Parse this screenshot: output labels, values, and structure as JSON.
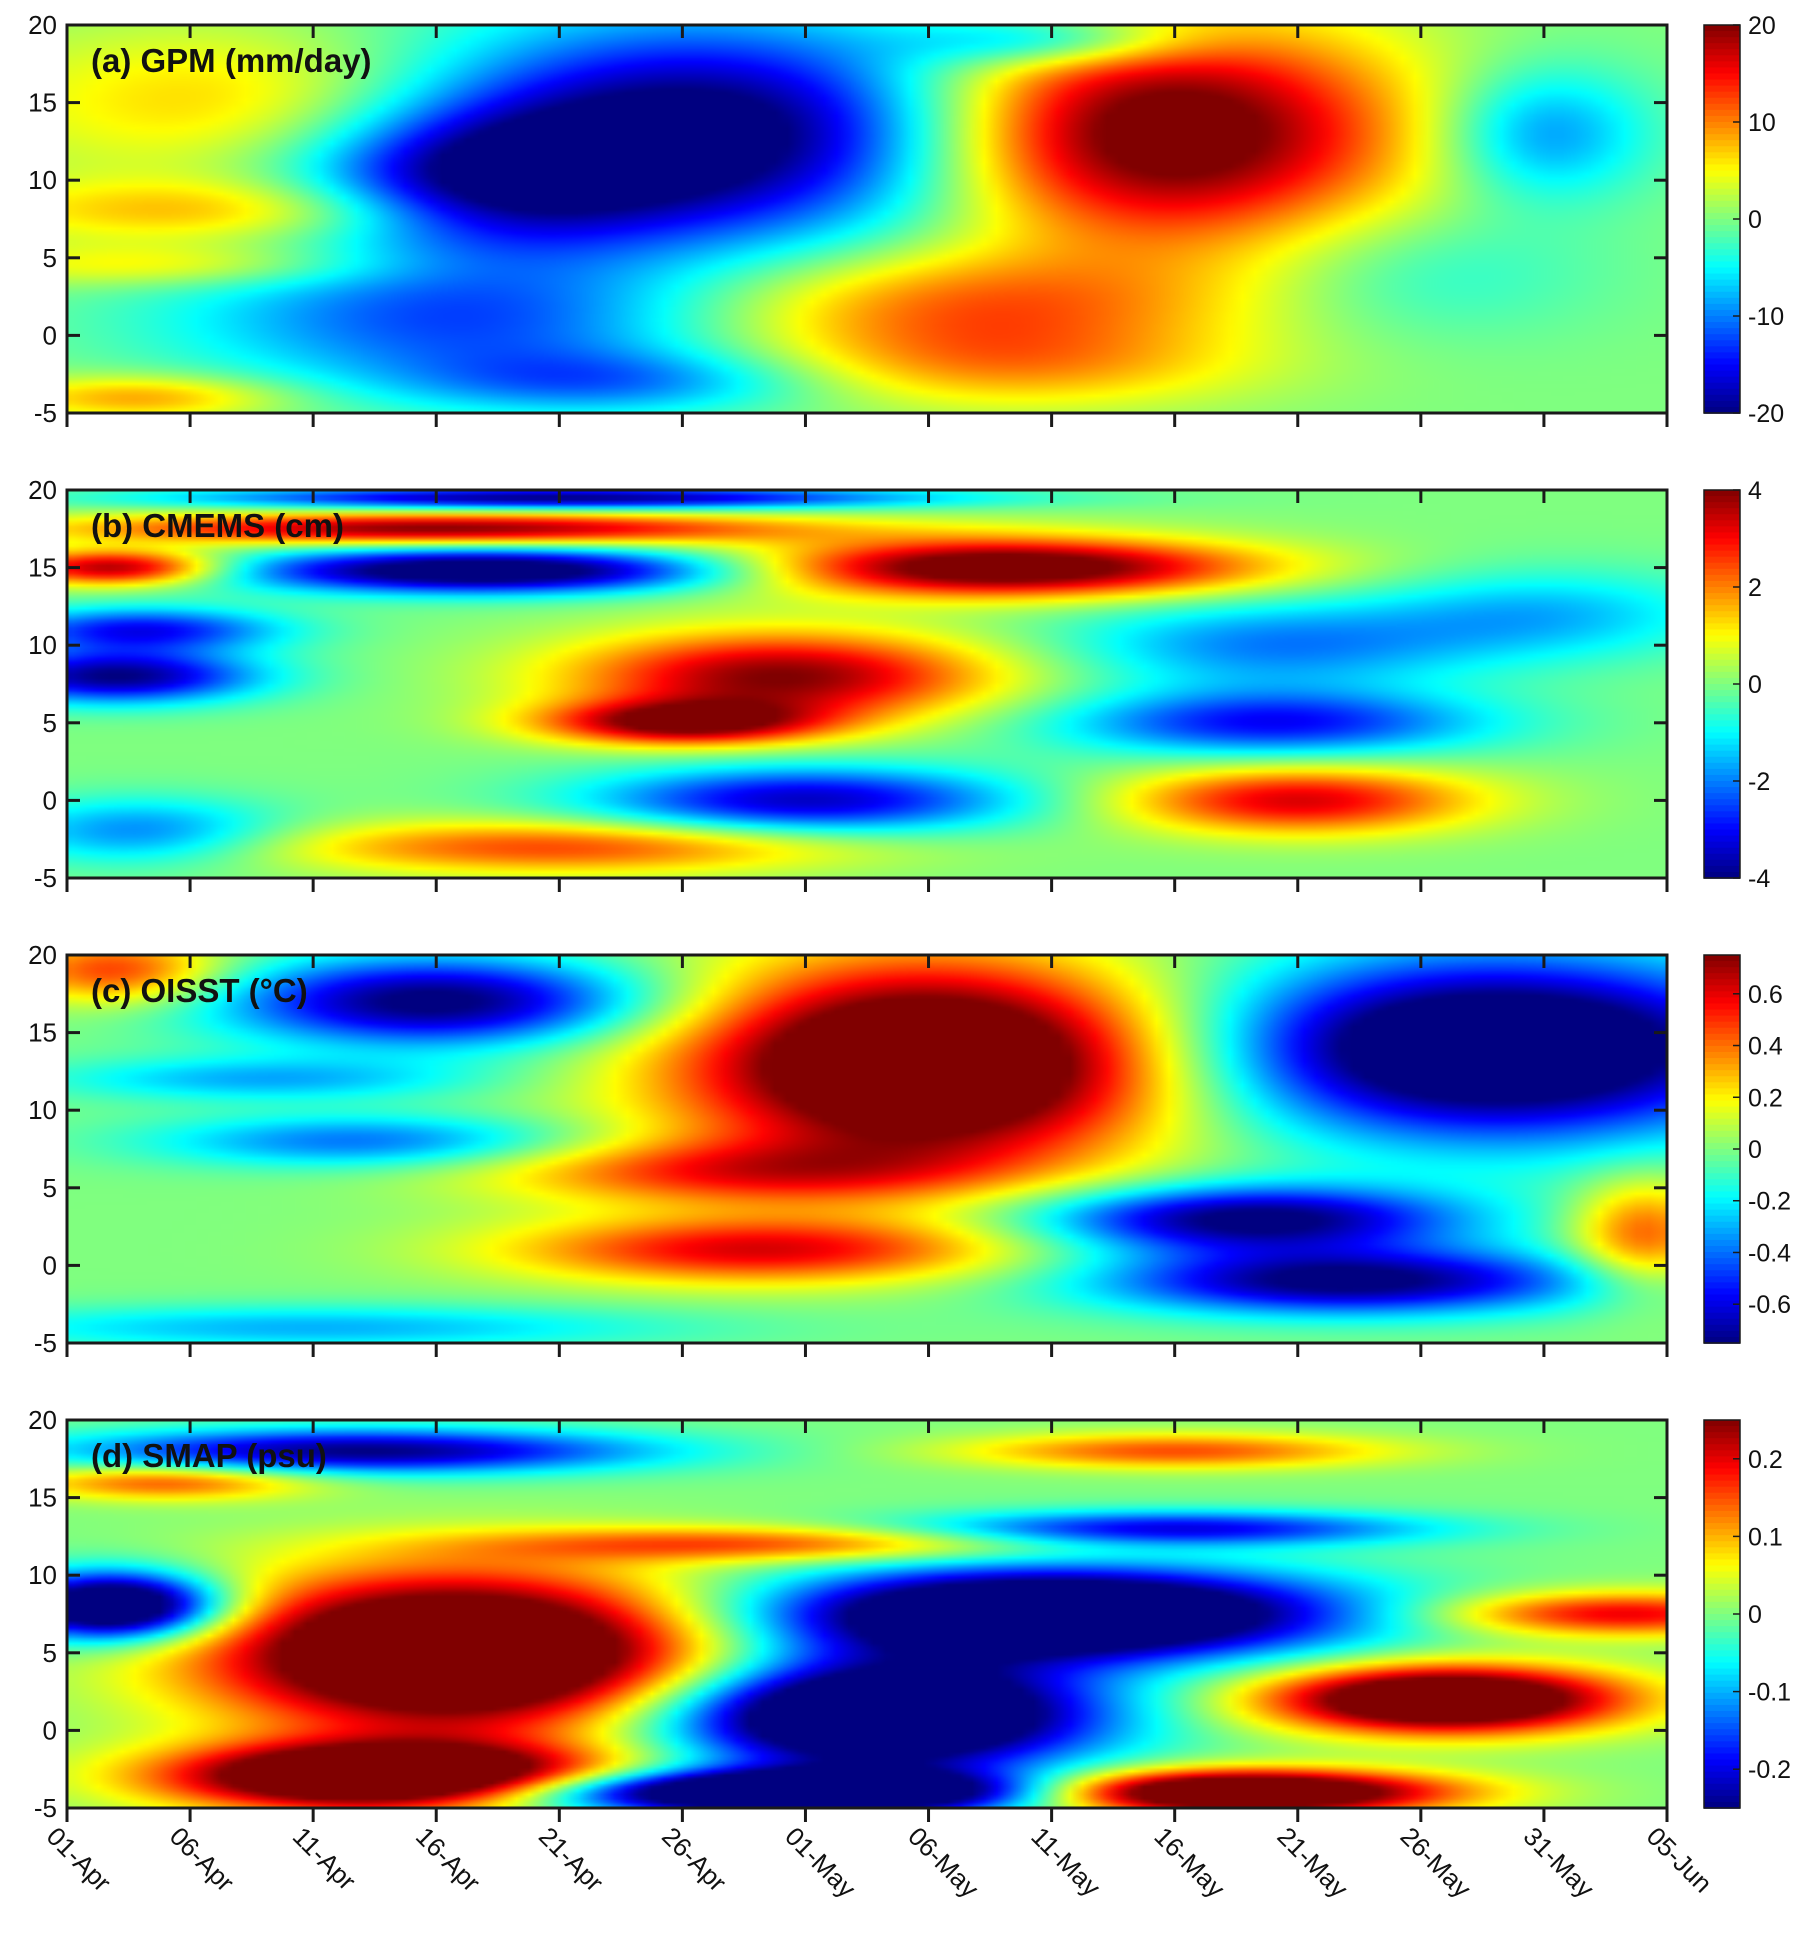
{
  "chart_data": [
    {
      "type": "heatmap",
      "title": "(a) GPM (mm/day)",
      "ylim": [
        -5,
        20
      ],
      "yticks": [
        -5,
        0,
        5,
        10,
        15,
        20
      ],
      "clim": [
        -20,
        20
      ],
      "colorbar_ticks": [
        -20,
        -10,
        0,
        10,
        20
      ],
      "features": [
        {
          "t": 26,
          "y": 13,
          "st": 9,
          "sy": 5,
          "v": -24
        },
        {
          "t": 17,
          "y": 10,
          "st": 5,
          "sy": 3,
          "v": -14
        },
        {
          "t": 44,
          "y": 13,
          "st": 7,
          "sy": 5,
          "v": 26
        },
        {
          "t": 7,
          "y": 15,
          "st": 7,
          "sy": 3.5,
          "v": 8
        },
        {
          "t": 6,
          "y": 8,
          "st": 7,
          "sy": 1.5,
          "v": 8
        },
        {
          "t": 4,
          "y": 4.5,
          "st": 6,
          "sy": 1,
          "v": 6
        },
        {
          "t": 16,
          "y": 1,
          "st": 8,
          "sy": 3,
          "v": -12
        },
        {
          "t": 36,
          "y": 2,
          "st": 8,
          "sy": 2.5,
          "v": 11
        },
        {
          "t": 38,
          "y": -2,
          "st": 7,
          "sy": 2,
          "v": 8
        },
        {
          "t": 22,
          "y": -3,
          "st": 6,
          "sy": 1.5,
          "v": -9
        },
        {
          "t": 3,
          "y": -4,
          "st": 4,
          "sy": 1,
          "v": 9
        },
        {
          "t": 60,
          "y": 13,
          "st": 3,
          "sy": 3,
          "v": -10
        },
        {
          "t": 55,
          "y": 4,
          "st": 5,
          "sy": 3,
          "v": -4
        },
        {
          "t": 40,
          "y": 19,
          "st": 4,
          "sy": 1.2,
          "v": -10
        }
      ]
    },
    {
      "type": "heatmap",
      "title": "(b) CMEMS (cm)",
      "ylim": [
        -5,
        20
      ],
      "yticks": [
        -5,
        0,
        5,
        10,
        15,
        20
      ],
      "clim": [
        -4,
        4
      ],
      "colorbar_ticks": [
        -4,
        -2,
        0,
        2,
        4
      ],
      "features": [
        {
          "t": 2,
          "y": 15,
          "st": 3,
          "sy": 0.8,
          "v": 4
        },
        {
          "t": 17,
          "y": 14.8,
          "st": 7,
          "sy": 1,
          "v": -5
        },
        {
          "t": 38,
          "y": 15,
          "st": 7,
          "sy": 1.3,
          "v": 5
        },
        {
          "t": 15,
          "y": 17.5,
          "st": 10,
          "sy": 0.7,
          "v": 4
        },
        {
          "t": 20,
          "y": 19.5,
          "st": 10,
          "sy": 0.5,
          "v": -4
        },
        {
          "t": 2,
          "y": 8,
          "st": 4,
          "sy": 1.2,
          "v": -4
        },
        {
          "t": 3,
          "y": 11,
          "st": 4,
          "sy": 1.0,
          "v": -3
        },
        {
          "t": 29,
          "y": 8,
          "st": 6,
          "sy": 2,
          "v": 4
        },
        {
          "t": 25,
          "y": 5,
          "st": 4,
          "sy": 1,
          "v": 4
        },
        {
          "t": 49,
          "y": 5,
          "st": 6,
          "sy": 1.5,
          "v": -3
        },
        {
          "t": 49,
          "y": 10,
          "st": 6,
          "sy": 2,
          "v": -2
        },
        {
          "t": 30,
          "y": 0,
          "st": 6,
          "sy": 1.5,
          "v": -3.5
        },
        {
          "t": 50,
          "y": 0,
          "st": 5,
          "sy": 1.5,
          "v": 3.3
        },
        {
          "t": 20,
          "y": -3,
          "st": 8,
          "sy": 1.2,
          "v": 2.5
        },
        {
          "t": 60,
          "y": 12,
          "st": 5,
          "sy": 2,
          "v": -1.5
        },
        {
          "t": 3,
          "y": -2,
          "st": 4,
          "sy": 1.5,
          "v": -2
        }
      ]
    },
    {
      "type": "heatmap",
      "title": "(c) OISST (°C)",
      "ylim": [
        -5,
        20
      ],
      "yticks": [
        -5,
        0,
        5,
        10,
        15,
        20
      ],
      "clim": [
        -0.75,
        0.75
      ],
      "colorbar_ticks": [
        -0.6,
        -0.4,
        -0.2,
        0,
        0.2,
        0.4,
        0.6
      ],
      "features": [
        {
          "t": 35,
          "y": 13,
          "st": 7,
          "sy": 4.5,
          "v": 1.2
        },
        {
          "t": 15,
          "y": 17,
          "st": 6,
          "sy": 2,
          "v": -0.8
        },
        {
          "t": 58,
          "y": 14,
          "st": 8,
          "sy": 4,
          "v": -1.1
        },
        {
          "t": 48,
          "y": 3,
          "st": 6,
          "sy": 1.5,
          "v": -0.8
        },
        {
          "t": 52,
          "y": -1,
          "st": 7,
          "sy": 1.5,
          "v": -0.8
        },
        {
          "t": 28,
          "y": 1,
          "st": 7,
          "sy": 1.5,
          "v": 0.6
        },
        {
          "t": 27,
          "y": 6,
          "st": 7,
          "sy": 1.5,
          "v": 0.45
        },
        {
          "t": 2,
          "y": 19,
          "st": 3,
          "sy": 1.5,
          "v": 0.5
        },
        {
          "t": 12,
          "y": 8,
          "st": 6,
          "sy": 1.2,
          "v": -0.4
        },
        {
          "t": 8,
          "y": 12,
          "st": 6,
          "sy": 1,
          "v": -0.3
        },
        {
          "t": 64,
          "y": 2,
          "st": 2,
          "sy": 2.5,
          "v": 0.45
        },
        {
          "t": 10,
          "y": -4,
          "st": 10,
          "sy": 1,
          "v": -0.3
        }
      ]
    },
    {
      "type": "heatmap",
      "title": "(d) SMAP (psu)",
      "ylim": [
        -5,
        20
      ],
      "yticks": [
        -5,
        0,
        5,
        10,
        15,
        20
      ],
      "clim": [
        -0.25,
        0.25
      ],
      "colorbar_ticks": [
        -0.2,
        -0.1,
        0,
        0.1,
        0.2
      ],
      "features": [
        {
          "t": 16,
          "y": 5,
          "st": 7,
          "sy": 3.5,
          "v": 0.45
        },
        {
          "t": 13,
          "y": -3,
          "st": 6,
          "sy": 1.5,
          "v": 0.45
        },
        {
          "t": 2,
          "y": 8,
          "st": 3,
          "sy": 1.5,
          "v": -0.4
        },
        {
          "t": 33,
          "y": 1,
          "st": 6,
          "sy": 2.5,
          "v": -0.45
        },
        {
          "t": 40,
          "y": 7.5,
          "st": 8,
          "sy": 2,
          "v": -0.45
        },
        {
          "t": 30,
          "y": -4,
          "st": 8,
          "sy": 1,
          "v": -0.45
        },
        {
          "t": 47,
          "y": -4,
          "st": 6,
          "sy": 1,
          "v": 0.45
        },
        {
          "t": 56,
          "y": 2,
          "st": 5,
          "sy": 1.5,
          "v": 0.4
        },
        {
          "t": 63,
          "y": 7.5,
          "st": 5,
          "sy": 1,
          "v": 0.2
        },
        {
          "t": 12,
          "y": 18,
          "st": 8,
          "sy": 1,
          "v": -0.25
        },
        {
          "t": 45,
          "y": 18,
          "st": 6,
          "sy": 0.8,
          "v": 0.15
        },
        {
          "t": 4,
          "y": 16,
          "st": 4,
          "sy": 0.8,
          "v": 0.15
        },
        {
          "t": 28,
          "y": 12,
          "st": 8,
          "sy": 0.8,
          "v": 0.15
        },
        {
          "t": 45,
          "y": 13,
          "st": 7,
          "sy": 0.8,
          "v": -0.2
        }
      ]
    }
  ],
  "x_axis": {
    "tick_labels": [
      "01-Apr",
      "06-Apr",
      "11-Apr",
      "16-Apr",
      "21-Apr",
      "26-Apr",
      "01-May",
      "06-May",
      "11-May",
      "16-May",
      "21-May",
      "26-May",
      "31-May",
      "05-Jun"
    ],
    "day_range": [
      0,
      65
    ],
    "tick_step_days": 5
  },
  "colormap": "jet"
}
